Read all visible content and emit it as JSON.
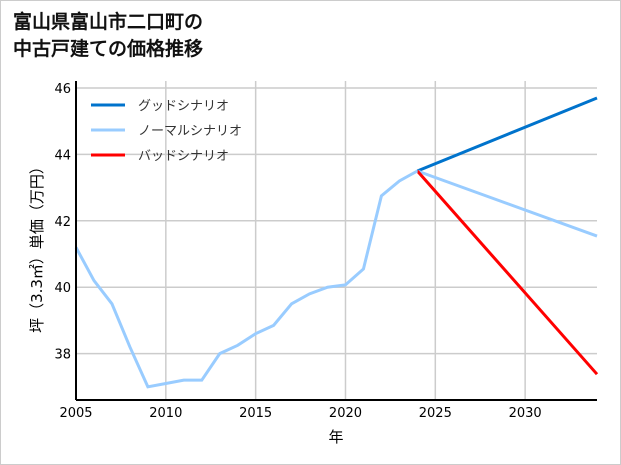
{
  "chart_data": {
    "type": "line",
    "title_lines": [
      "富山県富山市二口町の",
      "中古戸建ての価格推移"
    ],
    "xlabel": "年",
    "ylabel": "坪（3.3㎡）単価（万円）",
    "xlim": [
      2005,
      2034
    ],
    "ylim": [
      36.6,
      46.2
    ],
    "xticks": [
      2005,
      2010,
      2015,
      2020,
      2025,
      2030
    ],
    "yticks": [
      38,
      40,
      42,
      44,
      46
    ],
    "grid": true,
    "legend_position": "top-left",
    "history": {
      "x": [
        2005,
        2006,
        2007,
        2008,
        2009,
        2010,
        2011,
        2012,
        2013,
        2014,
        2015,
        2016,
        2017,
        2018,
        2019,
        2020,
        2021,
        2022,
        2023,
        2024
      ],
      "y": [
        41.2,
        40.2,
        39.5,
        38.2,
        37.0,
        37.1,
        37.2,
        37.2,
        38.0,
        38.25,
        38.6,
        38.85,
        39.5,
        39.8,
        40.0,
        40.07,
        40.55,
        42.75,
        43.2,
        43.5
      ]
    },
    "series": [
      {
        "name": "グッドシナリオ",
        "color": "#0073cc",
        "x": [
          2024,
          2034
        ],
        "y": [
          43.5,
          45.7
        ]
      },
      {
        "name": "ノーマルシナリオ",
        "color": "#99ccff",
        "x": [
          2024,
          2034
        ],
        "y": [
          43.5,
          41.54
        ]
      },
      {
        "name": "バッドシナリオ",
        "color": "#ff0000",
        "x": [
          2024,
          2034
        ],
        "y": [
          43.5,
          37.38
        ]
      }
    ]
  }
}
